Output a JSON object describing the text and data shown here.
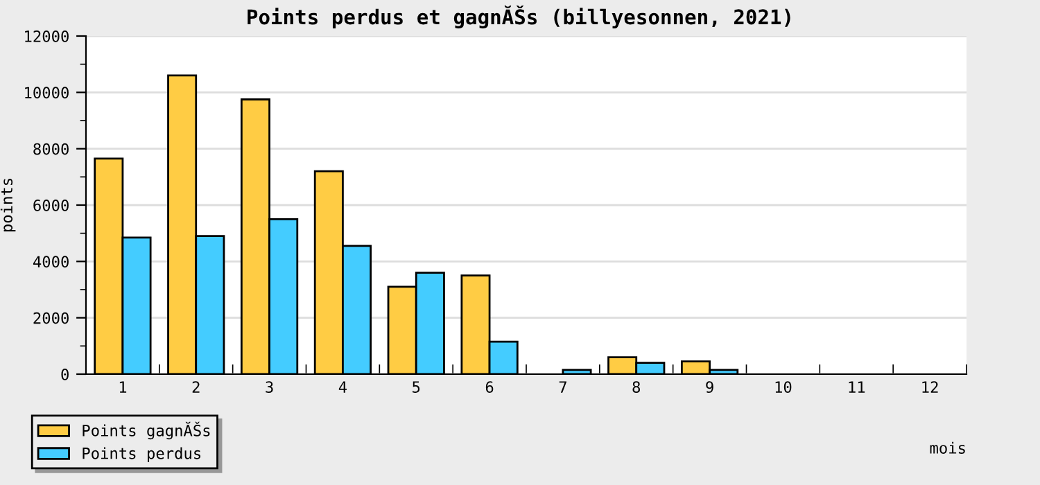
{
  "chart_data": {
    "type": "bar",
    "title": "Points perdus et gagnĂŠs (billyesonnen, 2021)",
    "xlabel": "mois",
    "ylabel": "points",
    "categories": [
      "1",
      "2",
      "3",
      "4",
      "5",
      "6",
      "7",
      "8",
      "9",
      "10",
      "11",
      "12"
    ],
    "series": [
      {
        "name": "Points gagnĂŠs",
        "color": "#ffcc44",
        "values": [
          7650,
          10600,
          9750,
          7200,
          3100,
          3500,
          0,
          600,
          450,
          0,
          0,
          0
        ]
      },
      {
        "name": "Points perdus",
        "color": "#44ccff",
        "values": [
          4850,
          4900,
          5500,
          4550,
          3600,
          1150,
          150,
          400,
          150,
          0,
          0,
          0
        ]
      }
    ],
    "ylim": [
      0,
      12000
    ],
    "yticks": [
      0,
      {
        "value": 1000,
        "label": null
      },
      2000,
      {
        "value": 3000,
        "label": null
      },
      4000,
      {
        "value": 5000,
        "label": null
      },
      6000,
      {
        "value": 7000,
        "label": null
      },
      8000,
      {
        "value": 9000,
        "label": null
      },
      10000,
      {
        "value": 11000,
        "label": null
      },
      12000
    ],
    "grid": "y",
    "legend": "bottom left"
  }
}
